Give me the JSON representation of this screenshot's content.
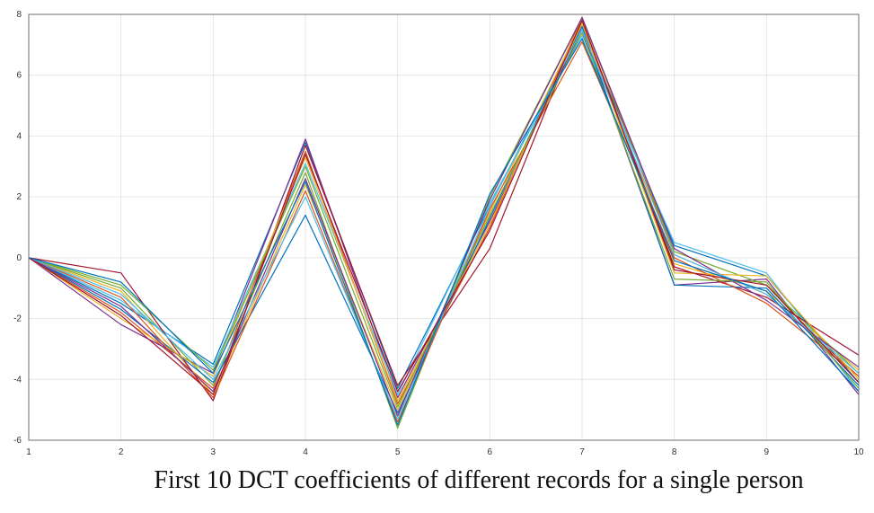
{
  "caption": "First 10 DCT coefficients of different records for a single person",
  "chart_data": {
    "type": "line",
    "x": [
      1,
      2,
      3,
      4,
      5,
      6,
      7,
      8,
      9,
      10
    ],
    "xlim": [
      1,
      10
    ],
    "ylim": [
      -6,
      8
    ],
    "xticks": [
      "1",
      "2",
      "3",
      "4",
      "5",
      "6",
      "7",
      "8",
      "9",
      "10"
    ],
    "yticks": [
      "-6",
      "-4",
      "-2",
      "0",
      "2",
      "4",
      "6",
      "8"
    ],
    "ytick_values": [
      -6,
      -4,
      -2,
      0,
      2,
      4,
      6,
      8
    ],
    "grid": true,
    "title": "",
    "xlabel": "",
    "ylabel": "",
    "series_colors": [
      "#0072BD",
      "#D95319",
      "#EDB120",
      "#7E2F8E",
      "#77AC30",
      "#4DBEEE",
      "#A2142F"
    ],
    "series": [
      {
        "values": [
          0,
          -1.5,
          -3.5,
          3.8,
          -4.3,
          1.7,
          7.6,
          0.4,
          -0.6,
          -4.1
        ]
      },
      {
        "values": [
          0,
          -1.8,
          -4.3,
          3.5,
          -4.8,
          1.0,
          7.9,
          0.1,
          -1.2,
          -3.9
        ]
      },
      {
        "values": [
          0,
          -1.1,
          -4.5,
          2.4,
          -5.0,
          1.5,
          7.8,
          -0.2,
          -1.1,
          -3.7
        ]
      },
      {
        "values": [
          0,
          -2.2,
          -3.8,
          3.9,
          -4.6,
          1.2,
          7.5,
          -0.9,
          -0.7,
          -4.5
        ]
      },
      {
        "values": [
          0,
          -1.0,
          -4.2,
          2.8,
          -5.6,
          2.0,
          7.9,
          0.2,
          -0.9,
          -3.8
        ]
      },
      {
        "values": [
          0,
          -1.4,
          -3.6,
          3.1,
          -4.5,
          1.8,
          7.3,
          0.5,
          -0.5,
          -4.4
        ]
      },
      {
        "values": [
          0,
          -0.5,
          -4.7,
          3.7,
          -4.2,
          0.3,
          7.8,
          -0.3,
          -1.3,
          -3.2
        ]
      },
      {
        "values": [
          0,
          -1.7,
          -4.1,
          1.4,
          -5.1,
          1.3,
          7.6,
          -0.9,
          -1.0,
          -4.2
        ]
      },
      {
        "values": [
          0,
          -1.3,
          -4.6,
          2.2,
          -5.4,
          1.6,
          7.1,
          0.0,
          -1.5,
          -3.9
        ]
      },
      {
        "values": [
          0,
          -2.0,
          -3.9,
          3.3,
          -4.7,
          1.1,
          7.7,
          -0.5,
          -0.6,
          -4.0
        ]
      },
      {
        "values": [
          0,
          -1.6,
          -4.4,
          2.6,
          -5.2,
          1.9,
          7.9,
          0.3,
          -1.4,
          -3.6
        ]
      },
      {
        "values": [
          0,
          -0.9,
          -3.7,
          3.0,
          -4.9,
          1.4,
          7.4,
          -0.7,
          -0.8,
          -4.3
        ]
      },
      {
        "values": [
          0,
          -1.2,
          -4.0,
          2.0,
          -5.3,
          1.7,
          7.5,
          0.1,
          -1.2,
          -3.8
        ]
      },
      {
        "values": [
          0,
          -1.9,
          -4.5,
          3.4,
          -4.4,
          0.9,
          7.8,
          -0.4,
          -0.9,
          -4.1
        ]
      },
      {
        "values": [
          0,
          -0.8,
          -3.8,
          2.5,
          -5.5,
          2.1,
          7.2,
          -0.1,
          -1.1,
          -4.4
        ]
      }
    ]
  }
}
